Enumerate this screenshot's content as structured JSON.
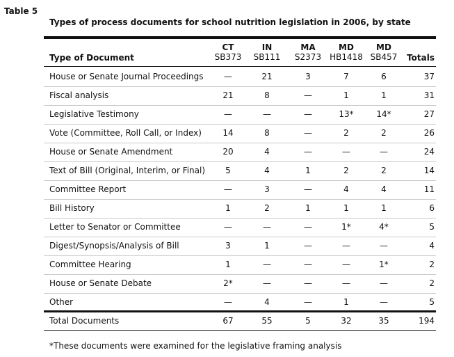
{
  "table_label": "Table 5",
  "title": "Types of process documents for school nutrition legislation in 2006, by state",
  "header": {
    "type_label": "Type of Document",
    "columns": [
      {
        "state": "CT",
        "bill": "SB373"
      },
      {
        "state": "IN",
        "bill": "SB111"
      },
      {
        "state": "MA",
        "bill": "S2373"
      },
      {
        "state": "MD",
        "bill": "HB1418"
      },
      {
        "state": "MD",
        "bill": "SB457"
      }
    ],
    "totals_label": "Totals"
  },
  "rows": [
    {
      "name": "House or Senate Journal Proceedings",
      "values": [
        "—",
        "21",
        "3",
        "7",
        "6"
      ],
      "total": "37"
    },
    {
      "name": "Fiscal analysis",
      "values": [
        "21",
        "8",
        "—",
        "1",
        "1"
      ],
      "total": "31"
    },
    {
      "name": "Legislative Testimony",
      "values": [
        "—",
        "—",
        "—",
        "13*",
        "14*"
      ],
      "total": "27"
    },
    {
      "name": "Vote (Committee, Roll Call, or Index)",
      "values": [
        "14",
        "8",
        "—",
        "2",
        "2"
      ],
      "total": "26"
    },
    {
      "name": "House or Senate Amendment",
      "values": [
        "20",
        "4",
        "—",
        "—",
        "—"
      ],
      "total": "24"
    },
    {
      "name": "Text of Bill (Original, Interim, or Final)",
      "values": [
        "5",
        "4",
        "1",
        "2",
        "2"
      ],
      "total": "14"
    },
    {
      "name": "Committee Report",
      "values": [
        "—",
        "3",
        "—",
        "4",
        "4"
      ],
      "total": "11"
    },
    {
      "name": "Bill History",
      "values": [
        "1",
        "2",
        "1",
        "1",
        "1"
      ],
      "total": "6"
    },
    {
      "name": "Letter to Senator or Committee",
      "values": [
        "—",
        "—",
        "—",
        "1*",
        "4*"
      ],
      "total": "5"
    },
    {
      "name": "Digest/Synopsis/Analysis of Bill",
      "values": [
        "3",
        "1",
        "—",
        "—",
        "—"
      ],
      "total": "4"
    },
    {
      "name": "Committee Hearing",
      "values": [
        "1",
        "—",
        "—",
        "—",
        "1*"
      ],
      "total": "2"
    },
    {
      "name": "House or Senate Debate",
      "values": [
        "2*",
        "—",
        "—",
        "—",
        "—"
      ],
      "total": "2"
    },
    {
      "name": "Other",
      "values": [
        "—",
        "4",
        "—",
        "1",
        "—"
      ],
      "total": "5"
    }
  ],
  "total_row": {
    "name": "Total Documents",
    "values": [
      "67",
      "55",
      "5",
      "32",
      "35"
    ],
    "total": "194"
  },
  "footnote": "*These documents were examined for the legislative framing analysis"
}
